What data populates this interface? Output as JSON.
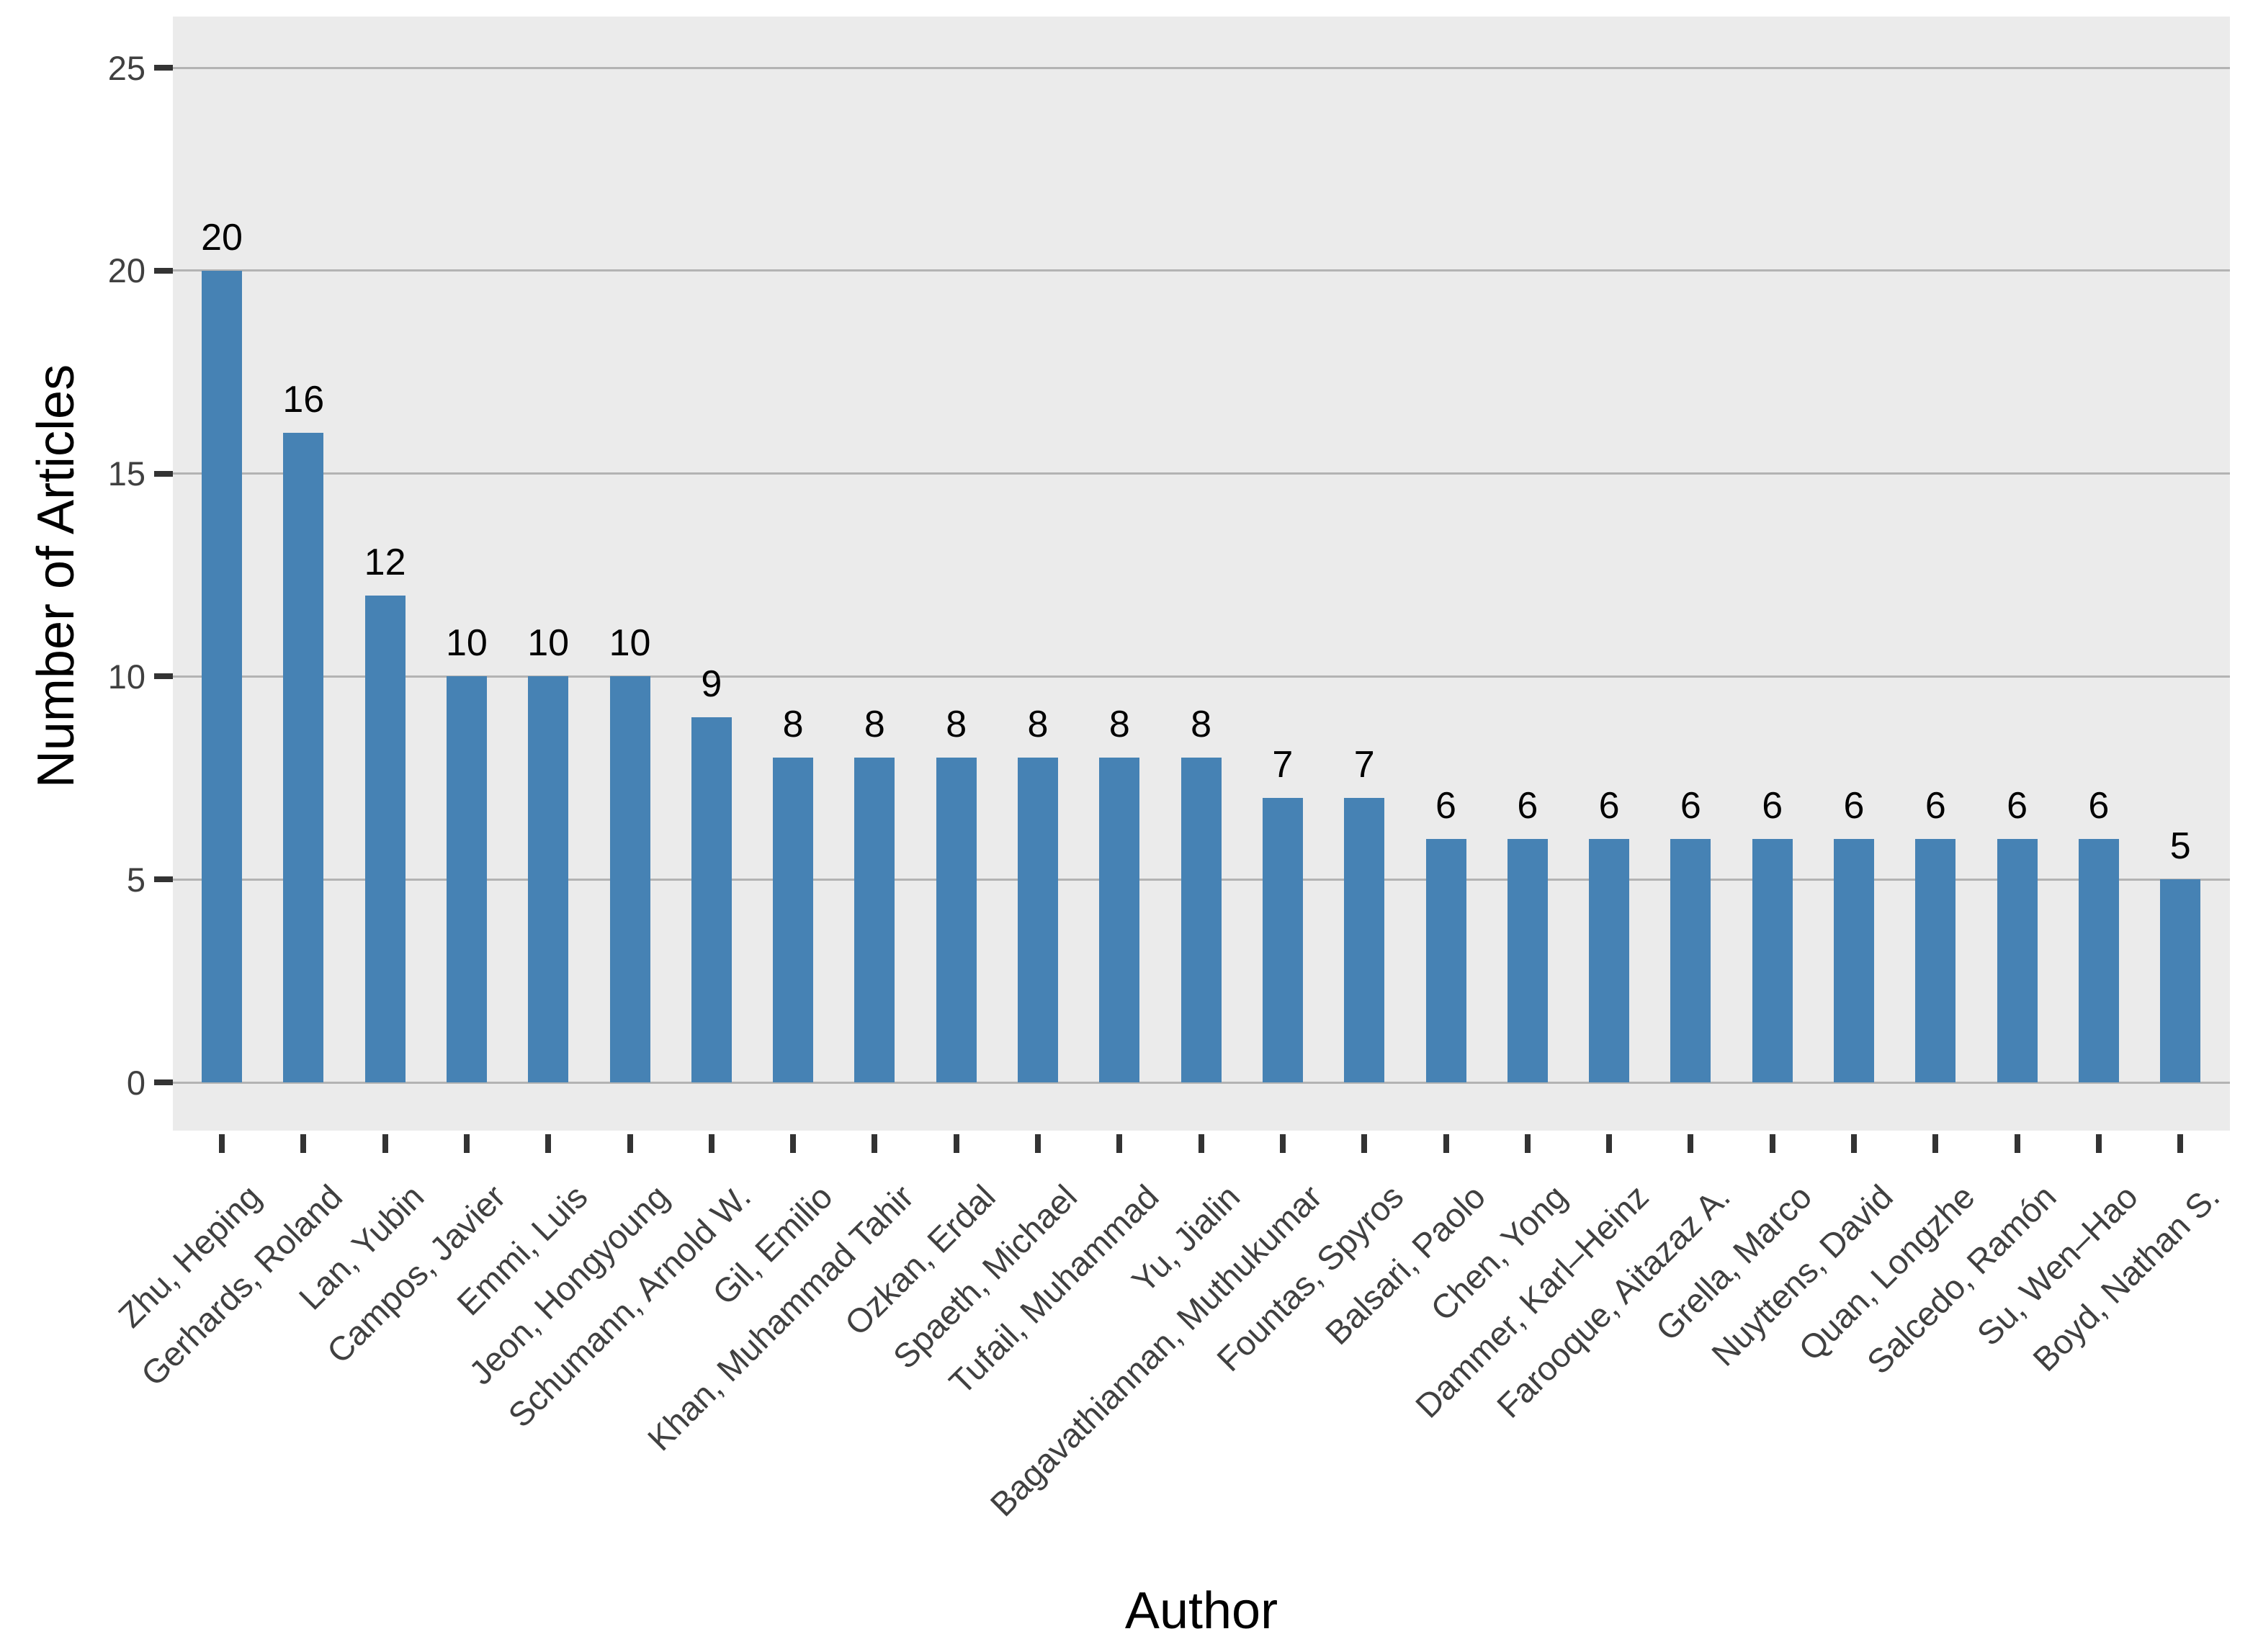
{
  "chart_data": {
    "type": "bar",
    "title": "",
    "xlabel": "Author",
    "ylabel": "Number of Articles",
    "categories": [
      "Zhu, Heping",
      "Gerhards, Roland",
      "Lan, Yubin",
      "Campos, Javier",
      "Emmi, Luis",
      "Jeon, Hongyoung",
      "Schumann, Arnold W.",
      "Gil, Emilio",
      "Khan, Muhammad Tahir",
      "Ozkan, Erdal",
      "Spaeth, Michael",
      "Tufail, Muhammad",
      "Yu, Jialin",
      "Bagavathiannan, Muthukumar",
      "Fountas, Spyros",
      "Balsari, Paolo",
      "Chen, Yong",
      "Dammer, Karl–Heinz",
      "Farooque, Aitazaz A.",
      "Grella, Marco",
      "Nuyttens, David",
      "Quan, Longzhe",
      "Salcedo, Ramón",
      "Su, Wen–Hao",
      "Boyd, Nathan S."
    ],
    "values": [
      20,
      16,
      12,
      10,
      10,
      10,
      9,
      8,
      8,
      8,
      8,
      8,
      8,
      7,
      7,
      6,
      6,
      6,
      6,
      6,
      6,
      6,
      6,
      6,
      5
    ],
    "value_labels_shown": true,
    "yticks": [
      0,
      5,
      10,
      15,
      20,
      25
    ],
    "ylim": [
      0,
      25
    ],
    "x_tick_label_rotation_deg": 45,
    "grid": "horizontal-major",
    "legend": "none",
    "colors": {
      "bar": "#4682B4",
      "panel_background": "#EBEBEB",
      "gridline": "#B3B3B3",
      "axis_tick": "#333333",
      "tick_label": "#404040",
      "axis_title": "#000000",
      "value_label": "#000000",
      "figure_background": "#FFFFFF"
    }
  }
}
